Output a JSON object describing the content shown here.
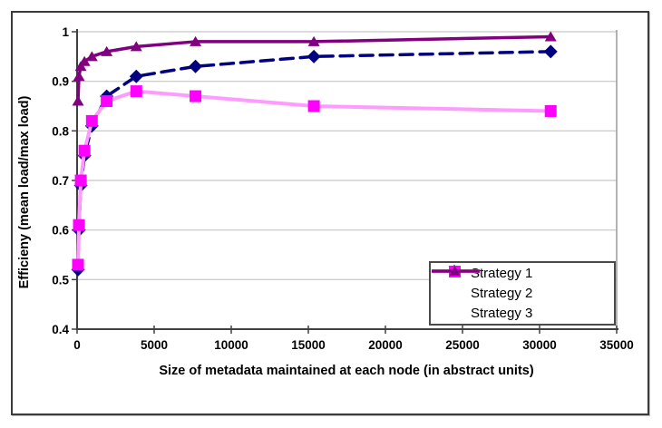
{
  "window": {
    "background": "#ffffff",
    "frame_border_color": "#3b3b3b"
  },
  "chart_data": {
    "type": "line",
    "title": "",
    "xlabel": "Size of metadata maintained at each node (in abstract units)",
    "ylabel": "Efficieny (mean load/max load)",
    "xlim": [
      0,
      35000
    ],
    "ylim": [
      0.4,
      1.0
    ],
    "grid": "horizontal",
    "gridline_color": "#c6c6c6",
    "axis_color": "#404040",
    "legend_position": "inside-bottom-right",
    "x_tick_values": [
      0,
      5000,
      10000,
      15000,
      20000,
      25000,
      30000,
      35000
    ],
    "x_tick_labels": [
      "0",
      "5000",
      "10000",
      "15000",
      "20000",
      "25000",
      "30000",
      "35000"
    ],
    "y_tick_values": [
      1.0,
      0.9,
      0.8,
      0.7,
      0.6,
      0.5,
      0.4
    ],
    "y_tick_labels": [
      "1",
      "0.9",
      "0.8",
      "0.7",
      "0.6",
      "0.5",
      "0.4"
    ],
    "x": [
      60,
      120,
      240,
      480,
      960,
      1920,
      3840,
      7680,
      15360,
      30720
    ],
    "series": [
      {
        "name": "Strategy 1",
        "color": "#000080",
        "line_color": "#000080",
        "line_style": "dashed",
        "marker": "diamond",
        "values": [
          0.52,
          0.6,
          0.69,
          0.75,
          0.81,
          0.87,
          0.91,
          0.93,
          0.95,
          0.96
        ]
      },
      {
        "name": "Strategy 2",
        "color": "#ff00ff",
        "line_color": "#ff9bff",
        "line_style": "solid",
        "marker": "square",
        "values": [
          0.53,
          0.61,
          0.7,
          0.76,
          0.82,
          0.86,
          0.88,
          0.87,
          0.85,
          0.84
        ]
      },
      {
        "name": "Strategy 3",
        "color": "#800080",
        "line_color": "#800080",
        "line_style": "solid",
        "marker": "triangle",
        "values": [
          0.86,
          0.91,
          0.93,
          0.94,
          0.95,
          0.96,
          0.97,
          0.98,
          0.98,
          0.99
        ]
      }
    ]
  }
}
